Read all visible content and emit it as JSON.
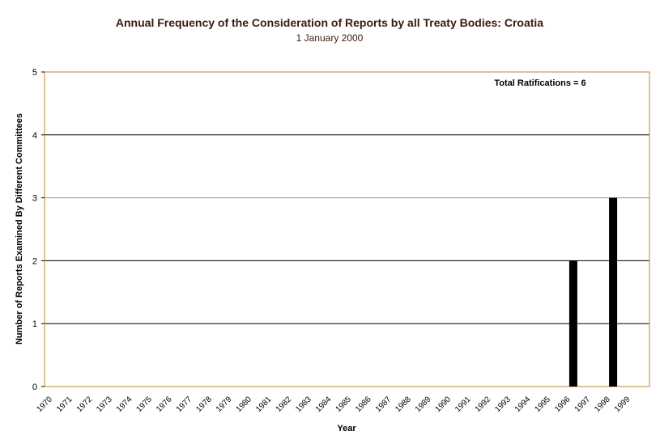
{
  "chart_data": {
    "type": "bar",
    "title": "Annual Frequency of the Consideration of Reports by all Treaty Bodies: Croatia",
    "subtitle": "1 January 2000",
    "xlabel": "Year",
    "ylabel": "Number of Reports Examined By Different Committees",
    "ylim": [
      0,
      5
    ],
    "yticks": [
      "0",
      "1",
      "2",
      "3",
      "4",
      "5"
    ],
    "annotation": "Total Ratifications = 6",
    "categories": [
      "1970",
      "1971",
      "1972",
      "1973",
      "1974",
      "1975",
      "1976",
      "1977",
      "1978",
      "1979",
      "1980",
      "1981",
      "1982",
      "1983",
      "1984",
      "1985",
      "1986",
      "1987",
      "1988",
      "1989",
      "1990",
      "1991",
      "1992",
      "1993",
      "1994",
      "1995",
      "1996",
      "1997",
      "1998",
      "1999"
    ],
    "values": [
      0,
      0,
      0,
      0,
      0,
      0,
      0,
      0,
      0,
      0,
      0,
      0,
      0,
      0,
      0,
      0,
      0,
      0,
      0,
      0,
      0,
      0,
      0,
      0,
      0,
      0,
      2,
      0,
      3,
      0
    ],
    "colors": {
      "bar": "#000000",
      "grid": "#000000",
      "highlight_grid": "#d08a4a",
      "frame": "#c8822f",
      "title": "#3a1a10"
    }
  }
}
